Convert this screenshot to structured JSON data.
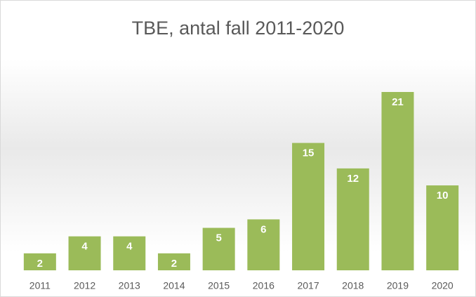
{
  "chart_data": {
    "type": "bar",
    "title": "TBE, antal fall 2011-2020",
    "categories": [
      "2011",
      "2012",
      "2013",
      "2014",
      "2015",
      "2016",
      "2017",
      "2018",
      "2019",
      "2020"
    ],
    "values": [
      2,
      4,
      4,
      2,
      5,
      6,
      15,
      12,
      21,
      10
    ],
    "color": "#9bbb59",
    "data_labels": true
  }
}
